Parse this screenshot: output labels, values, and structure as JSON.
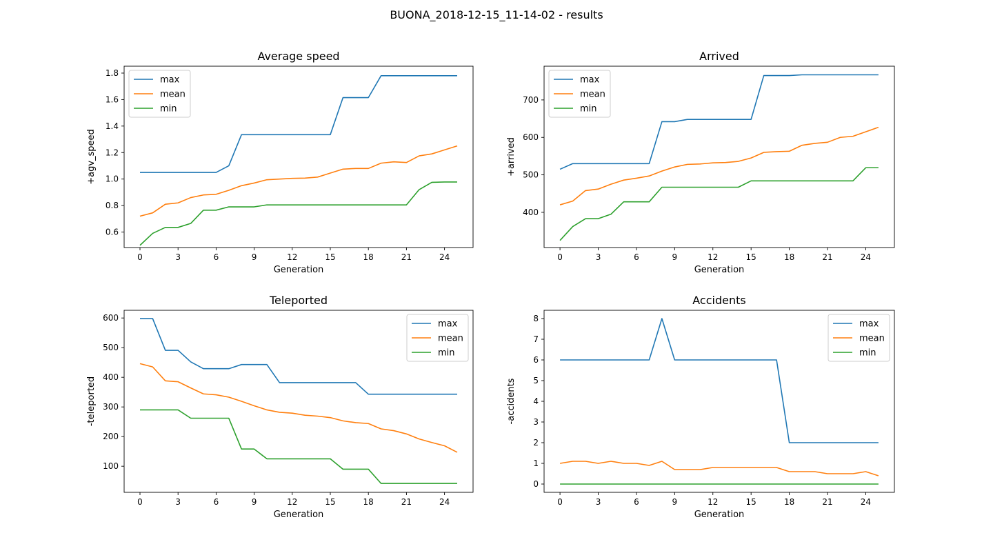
{
  "figure": {
    "suptitle": "BUONA_2018-12-15_11-14-02 - results"
  },
  "colors": {
    "max": "#1f77b4",
    "mean": "#ff7f0e",
    "min": "#2ca02c"
  },
  "chart_data": [
    {
      "type": "line",
      "title": "Average speed",
      "xlabel": "Generation",
      "ylabel": "+agv_speed",
      "xlim": [
        -1.25,
        26.25
      ],
      "ylim": [
        0.483,
        1.852
      ],
      "xticks": [
        0,
        3,
        6,
        9,
        12,
        15,
        18,
        21,
        24
      ],
      "yticks": [
        0.6,
        0.8,
        1.0,
        1.2,
        1.4,
        1.6,
        1.8
      ],
      "ytick_labels": [
        "0.6",
        "0.8",
        "1.0",
        "1.2",
        "1.4",
        "1.6",
        "1.8"
      ],
      "legend_loc": "upper left",
      "x": [
        0,
        1,
        2,
        3,
        4,
        5,
        6,
        7,
        8,
        9,
        10,
        11,
        12,
        13,
        14,
        15,
        16,
        17,
        18,
        19,
        20,
        21,
        22,
        23,
        24,
        25
      ],
      "series": [
        {
          "name": "max",
          "values": [
            1.05,
            1.05,
            1.05,
            1.05,
            1.05,
            1.05,
            1.05,
            1.1,
            1.335,
            1.335,
            1.335,
            1.335,
            1.335,
            1.335,
            1.335,
            1.335,
            1.615,
            1.615,
            1.615,
            1.78,
            1.78,
            1.78,
            1.78,
            1.78,
            1.78,
            1.78
          ]
        },
        {
          "name": "mean",
          "values": [
            0.72,
            0.745,
            0.81,
            0.82,
            0.86,
            0.88,
            0.885,
            0.915,
            0.95,
            0.97,
            0.995,
            1.0,
            1.005,
            1.007,
            1.015,
            1.045,
            1.075,
            1.08,
            1.08,
            1.12,
            1.13,
            1.125,
            1.175,
            1.19,
            1.22,
            1.25
          ]
        },
        {
          "name": "min",
          "values": [
            0.5,
            0.59,
            0.635,
            0.635,
            0.665,
            0.765,
            0.765,
            0.79,
            0.79,
            0.79,
            0.805,
            0.805,
            0.805,
            0.805,
            0.805,
            0.805,
            0.805,
            0.805,
            0.805,
            0.805,
            0.805,
            0.805,
            0.92,
            0.975,
            0.978,
            0.978
          ]
        }
      ]
    },
    {
      "type": "line",
      "title": "Arrived",
      "xlabel": "Generation",
      "ylabel": "+arrived",
      "xlim": [
        -1.25,
        26.25
      ],
      "ylim": [
        306,
        790
      ],
      "xticks": [
        0,
        3,
        6,
        9,
        12,
        15,
        18,
        21,
        24
      ],
      "yticks": [
        400,
        500,
        600,
        700
      ],
      "ytick_labels": [
        "400",
        "500",
        "600",
        "700"
      ],
      "legend_loc": "upper left",
      "x": [
        0,
        1,
        2,
        3,
        4,
        5,
        6,
        7,
        8,
        9,
        10,
        11,
        12,
        13,
        14,
        15,
        16,
        17,
        18,
        19,
        20,
        21,
        22,
        23,
        24,
        25
      ],
      "series": [
        {
          "name": "max",
          "values": [
            515,
            530,
            530,
            530,
            530,
            530,
            530,
            530,
            642,
            642,
            648,
            648,
            648,
            648,
            648,
            648,
            765,
            765,
            765,
            767,
            767,
            767,
            767,
            767,
            767,
            767
          ]
        },
        {
          "name": "mean",
          "values": [
            420,
            430,
            458,
            462,
            475,
            486,
            491,
            497,
            510,
            521,
            528,
            529,
            532,
            533,
            536,
            545,
            560,
            562,
            563,
            579,
            584,
            587,
            600,
            603,
            615,
            627
          ]
        },
        {
          "name": "min",
          "values": [
            325,
            362,
            383,
            383,
            395,
            428,
            428,
            428,
            467,
            467,
            467,
            467,
            467,
            467,
            467,
            484,
            484,
            484,
            484,
            484,
            484,
            484,
            484,
            484,
            519,
            519
          ]
        }
      ]
    },
    {
      "type": "line",
      "title": "Teleported",
      "xlabel": "Generation",
      "ylabel": "-teleported",
      "xlim": [
        -1.25,
        26.25
      ],
      "ylim": [
        12,
        626
      ],
      "xticks": [
        0,
        3,
        6,
        9,
        12,
        15,
        18,
        21,
        24
      ],
      "yticks": [
        100,
        200,
        300,
        400,
        500,
        600
      ],
      "ytick_labels": [
        "100",
        "200",
        "300",
        "400",
        "500",
        "600"
      ],
      "legend_loc": "upper right",
      "x": [
        0,
        1,
        2,
        3,
        4,
        5,
        6,
        7,
        8,
        9,
        10,
        11,
        12,
        13,
        14,
        15,
        16,
        17,
        18,
        19,
        20,
        21,
        22,
        23,
        24,
        25
      ],
      "series": [
        {
          "name": "max",
          "values": [
            598,
            598,
            491,
            491,
            452,
            429,
            429,
            429,
            443,
            443,
            443,
            382,
            382,
            382,
            382,
            382,
            382,
            382,
            343,
            343,
            343,
            343,
            343,
            343,
            343,
            343
          ]
        },
        {
          "name": "mean",
          "values": [
            446,
            435,
            388,
            385,
            364,
            344,
            341,
            333,
            319,
            304,
            290,
            282,
            279,
            272,
            269,
            264,
            253,
            247,
            244,
            226,
            220,
            209,
            192,
            180,
            169,
            147
          ]
        },
        {
          "name": "min",
          "values": [
            290,
            290,
            290,
            290,
            262,
            262,
            262,
            262,
            158,
            158,
            125,
            125,
            125,
            125,
            125,
            125,
            90,
            90,
            90,
            42,
            42,
            42,
            42,
            42,
            42,
            42
          ]
        }
      ]
    },
    {
      "type": "line",
      "title": "Accidents",
      "xlabel": "Generation",
      "ylabel": "-accidents",
      "xlim": [
        -1.25,
        26.25
      ],
      "ylim": [
        -0.4,
        8.4
      ],
      "xticks": [
        0,
        3,
        6,
        9,
        12,
        15,
        18,
        21,
        24
      ],
      "yticks": [
        0,
        1,
        2,
        3,
        4,
        5,
        6,
        7,
        8
      ],
      "ytick_labels": [
        "0",
        "1",
        "2",
        "3",
        "4",
        "5",
        "6",
        "7",
        "8"
      ],
      "legend_loc": "upper right",
      "x": [
        0,
        1,
        2,
        3,
        4,
        5,
        6,
        7,
        8,
        9,
        10,
        11,
        12,
        13,
        14,
        15,
        16,
        17,
        18,
        19,
        20,
        21,
        22,
        23,
        24,
        25
      ],
      "series": [
        {
          "name": "max",
          "values": [
            6,
            6,
            6,
            6,
            6,
            6,
            6,
            6,
            8,
            6,
            6,
            6,
            6,
            6,
            6,
            6,
            6,
            6,
            2,
            2,
            2,
            2,
            2,
            2,
            2,
            2
          ]
        },
        {
          "name": "mean",
          "values": [
            1.0,
            1.1,
            1.1,
            1.0,
            1.1,
            1.0,
            1.0,
            0.9,
            1.1,
            0.7,
            0.7,
            0.7,
            0.8,
            0.8,
            0.8,
            0.8,
            0.8,
            0.8,
            0.6,
            0.6,
            0.6,
            0.5,
            0.5,
            0.5,
            0.6,
            0.4
          ]
        },
        {
          "name": "min",
          "values": [
            0,
            0,
            0,
            0,
            0,
            0,
            0,
            0,
            0,
            0,
            0,
            0,
            0,
            0,
            0,
            0,
            0,
            0,
            0,
            0,
            0,
            0,
            0,
            0,
            0,
            0
          ]
        }
      ]
    }
  ]
}
